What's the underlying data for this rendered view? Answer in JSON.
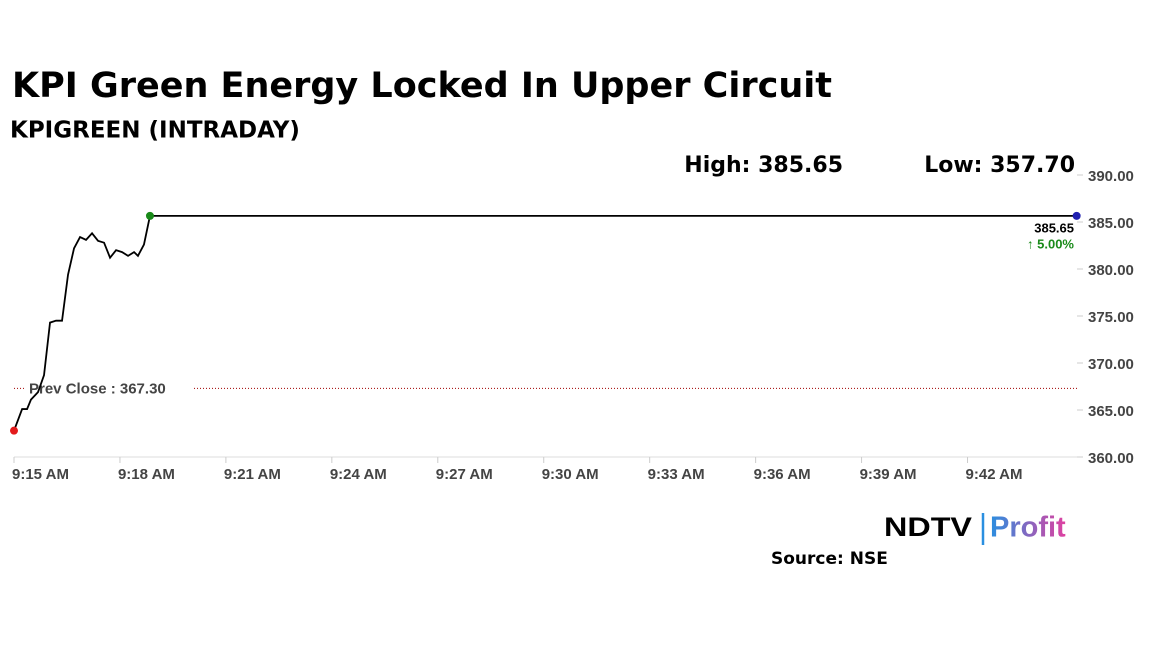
{
  "chart_data": {
    "type": "line",
    "title": "KPI Green Energy Locked In Upper Circuit",
    "subtitle": "KPIGREEN (INTRADAY)",
    "high_label": "High: 385.65",
    "low_label": "Low: 357.70",
    "last_label": "385.65",
    "change_label": "↑ 5.00%",
    "prev_close": {
      "value": 367.3,
      "label": "Prev Close : 367.30",
      "color": "#a00000"
    },
    "x": [
      555,
      555.23,
      555.37,
      555.48,
      555.68,
      555.85,
      556.02,
      556.19,
      556.36,
      556.53,
      556.7,
      556.87,
      557.04,
      557.21,
      557.38,
      557.55,
      557.72,
      557.89,
      558.06,
      558.23,
      558.4,
      558.51,
      558.68,
      558.85,
      585.09
    ],
    "series": [
      {
        "color": "#000000",
        "values": [
          362.8,
          365.1,
          365.1,
          366.1,
          366.9,
          368.7,
          374.3,
          374.5,
          374.5,
          379.4,
          382.2,
          383.4,
          383.1,
          383.8,
          383.0,
          382.8,
          381.2,
          382.0,
          381.8,
          381.4,
          381.8,
          381.4,
          382.6,
          385.65,
          385.65
        ]
      }
    ],
    "start_color": "#e31a1c",
    "high_color": "#1a8a1a",
    "end_color": "#2020b0",
    "change_color": "#1a8a1a",
    "xlim": [
      555,
      585.1
    ],
    "xticks": [
      {
        "value": 555,
        "label": "9:15 AM"
      },
      {
        "value": 558,
        "label": "9:18 AM"
      },
      {
        "value": 561,
        "label": "9:21 AM"
      },
      {
        "value": 564,
        "label": "9:24 AM"
      },
      {
        "value": 567,
        "label": "9:27 AM"
      },
      {
        "value": 570,
        "label": "9:30 AM"
      },
      {
        "value": 573,
        "label": "9:33 AM"
      },
      {
        "value": 576,
        "label": "9:36 AM"
      },
      {
        "value": 579,
        "label": "9:39 AM"
      },
      {
        "value": 582,
        "label": "9:42 AM"
      }
    ],
    "ylim": [
      360,
      390
    ],
    "yticks": [
      {
        "value": 360,
        "label": "360.00"
      },
      {
        "value": 365,
        "label": "365.00"
      },
      {
        "value": 370,
        "label": "370.00"
      },
      {
        "value": 375,
        "label": "375.00"
      },
      {
        "value": 380,
        "label": "380.00"
      },
      {
        "value": 385,
        "label": "385.00"
      },
      {
        "value": 390,
        "label": "390.00"
      }
    ],
    "source": "Source: NSE",
    "logo_brand": "NDTV",
    "logo_product": "Profit"
  }
}
